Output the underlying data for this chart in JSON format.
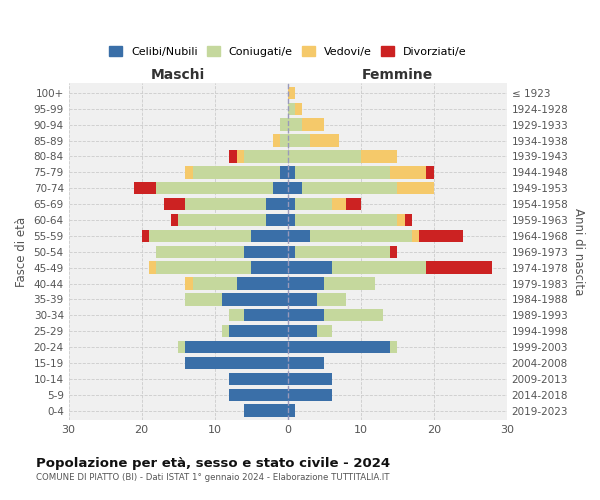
{
  "age_groups": [
    "0-4",
    "5-9",
    "10-14",
    "15-19",
    "20-24",
    "25-29",
    "30-34",
    "35-39",
    "40-44",
    "45-49",
    "50-54",
    "55-59",
    "60-64",
    "65-69",
    "70-74",
    "75-79",
    "80-84",
    "85-89",
    "90-94",
    "95-99",
    "100+"
  ],
  "birth_years": [
    "2019-2023",
    "2014-2018",
    "2009-2013",
    "2004-2008",
    "1999-2003",
    "1994-1998",
    "1989-1993",
    "1984-1988",
    "1979-1983",
    "1974-1978",
    "1969-1973",
    "1964-1968",
    "1959-1963",
    "1954-1958",
    "1949-1953",
    "1944-1948",
    "1939-1943",
    "1934-1938",
    "1929-1933",
    "1924-1928",
    "≤ 1923"
  ],
  "colors": {
    "celibi": "#3a6fa8",
    "coniugati": "#c5d89d",
    "vedovi": "#f5c96a",
    "divorziati": "#cc2222"
  },
  "maschi": {
    "celibi": [
      6,
      8,
      8,
      14,
      14,
      8,
      6,
      9,
      7,
      5,
      6,
      5,
      3,
      3,
      2,
      1,
      0,
      0,
      0,
      0,
      0
    ],
    "coniugati": [
      0,
      0,
      0,
      0,
      1,
      1,
      2,
      5,
      6,
      13,
      12,
      14,
      12,
      11,
      16,
      12,
      6,
      1,
      1,
      0,
      0
    ],
    "vedovi": [
      0,
      0,
      0,
      0,
      0,
      0,
      0,
      0,
      1,
      1,
      0,
      0,
      0,
      0,
      0,
      1,
      1,
      1,
      0,
      0,
      0
    ],
    "divorziati": [
      0,
      0,
      0,
      0,
      0,
      0,
      0,
      0,
      0,
      0,
      0,
      1,
      1,
      3,
      3,
      0,
      1,
      0,
      0,
      0,
      0
    ]
  },
  "femmine": {
    "celibi": [
      1,
      6,
      6,
      5,
      14,
      4,
      5,
      4,
      5,
      6,
      1,
      3,
      1,
      1,
      2,
      1,
      0,
      0,
      0,
      0,
      0
    ],
    "coniugati": [
      0,
      0,
      0,
      0,
      1,
      2,
      8,
      4,
      7,
      13,
      13,
      14,
      14,
      5,
      13,
      13,
      10,
      3,
      2,
      1,
      0
    ],
    "vedovi": [
      0,
      0,
      0,
      0,
      0,
      0,
      0,
      0,
      0,
      0,
      0,
      1,
      1,
      2,
      5,
      5,
      5,
      4,
      3,
      1,
      1
    ],
    "divorziati": [
      0,
      0,
      0,
      0,
      0,
      0,
      0,
      0,
      0,
      9,
      1,
      6,
      1,
      2,
      0,
      1,
      0,
      0,
      0,
      0,
      0
    ]
  },
  "title": "Popolazione per età, sesso e stato civile - 2024",
  "subtitle": "COMUNE DI PIATTO (BI) - Dati ISTAT 1° gennaio 2024 - Elaborazione TUTTITALIA.IT",
  "xlabel_left": "Maschi",
  "xlabel_right": "Femmine",
  "ylabel_left": "Fasce di età",
  "ylabel_right": "Anni di nascita",
  "xlim": 30,
  "bg_color": "#f0f0f0",
  "grid_color": "#cccccc",
  "legend_labels": [
    "Celibi/Nubili",
    "Coniugati/e",
    "Vedovi/e",
    "Divorziati/e"
  ]
}
